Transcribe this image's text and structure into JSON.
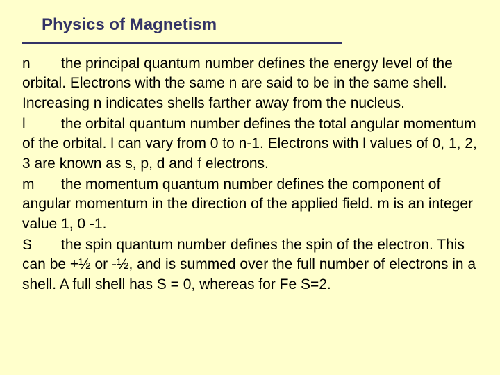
{
  "slide": {
    "background_color": "#ffffcc",
    "title_color": "#333366",
    "text_color": "#000000",
    "underline_color": "#333366",
    "title_fontsize": 24,
    "body_fontsize": 21,
    "title": "Physics of Magnetism",
    "paragraphs": {
      "n_symbol": "n",
      "n_text": "the principal quantum number defines the energy level of the orbital.  Electrons with the same n are said to be in the same shell.  Increasing n indicates shells farther away from the nucleus.",
      "l_symbol": "l",
      "l_text": "the orbital quantum number defines the total angular momentum of the orbital.  l can vary from 0 to n-1.  Electrons with l values of 0, 1, 2, 3 are known as s, p, d and f electrons.",
      "m_symbol": "m",
      "m_text": "the momentum quantum number defines the component of angular momentum in the direction of the applied field.  m is an integer value 1, 0 -1.",
      "s_symbol": "S",
      "s_text": "the spin quantum number defines the spin of the electron.  This can be +½ or -½, and is summed over the full number of electrons in a shell.  A full shell has S = 0, whereas for Fe S=2."
    }
  }
}
